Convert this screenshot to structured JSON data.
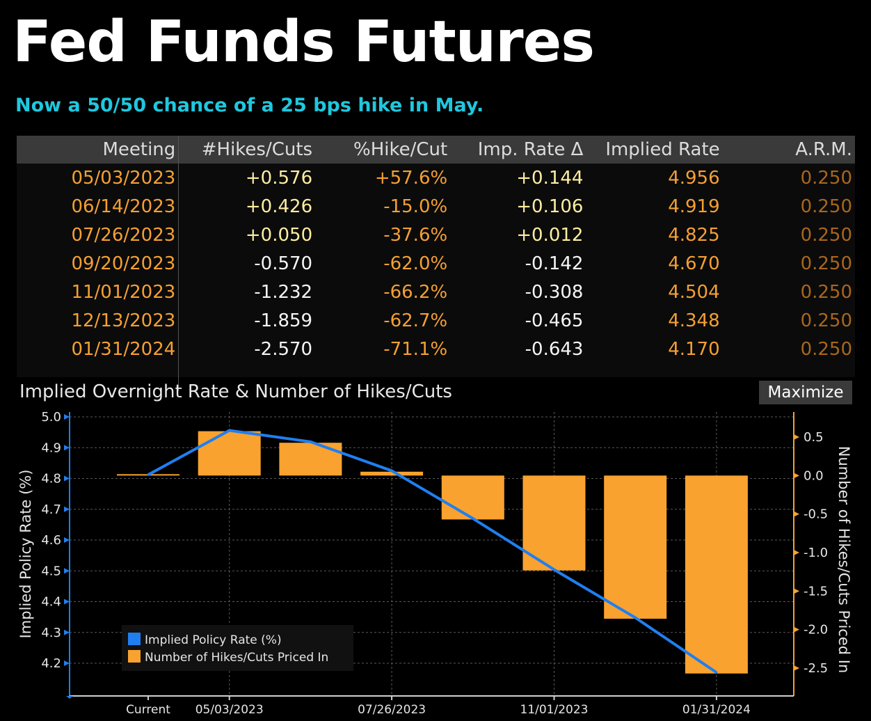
{
  "header": {
    "title": "Fed Funds Futures",
    "subtitle": "Now a 50/50 chance of a 25 bps hike in May."
  },
  "table": {
    "columns": [
      "Meeting",
      "#Hikes/Cuts",
      "%Hike/Cut",
      "Imp. Rate Δ",
      "Implied Rate",
      "A.R.M."
    ],
    "rows": [
      {
        "meeting": "05/03/2023",
        "hikes": "+0.576",
        "pct": "+57.6%",
        "delta": "+0.144",
        "rate": "4.956",
        "arm": "0.250"
      },
      {
        "meeting": "06/14/2023",
        "hikes": "+0.426",
        "pct": "-15.0%",
        "delta": "+0.106",
        "rate": "4.919",
        "arm": "0.250"
      },
      {
        "meeting": "07/26/2023",
        "hikes": "+0.050",
        "pct": "-37.6%",
        "delta": "+0.012",
        "rate": "4.825",
        "arm": "0.250"
      },
      {
        "meeting": "09/20/2023",
        "hikes": "-0.570",
        "pct": "-62.0%",
        "delta": "-0.142",
        "rate": "4.670",
        "arm": "0.250"
      },
      {
        "meeting": "11/01/2023",
        "hikes": "-1.232",
        "pct": "-66.2%",
        "delta": "-0.308",
        "rate": "4.504",
        "arm": "0.250"
      },
      {
        "meeting": "12/13/2023",
        "hikes": "-1.859",
        "pct": "-62.7%",
        "delta": "-0.465",
        "rate": "4.348",
        "arm": "0.250"
      },
      {
        "meeting": "01/31/2024",
        "hikes": "-2.570",
        "pct": "-71.1%",
        "delta": "-0.643",
        "rate": "4.170",
        "arm": "0.250"
      }
    ]
  },
  "panel": {
    "title": "Implied Overnight Rate & Number of Hikes/Cuts",
    "maximize_label": "Maximize"
  },
  "colors": {
    "line": "#1f7ff0",
    "bar": "#f9a22f",
    "axis_left": "#1f7ff0",
    "axis_right": "#f9a22f"
  },
  "chart_data": {
    "type": "bar",
    "categories": [
      "Current",
      "05/03/2023",
      "06/14/2023",
      "07/26/2023",
      "09/20/2023",
      "11/01/2023",
      "12/13/2023",
      "01/31/2024"
    ],
    "x_tick_labels": [
      "Current",
      "05/03/2023",
      "07/26/2023",
      "11/01/2023",
      "01/31/2024"
    ],
    "series": [
      {
        "name": "Implied Policy Rate (%)",
        "type": "line",
        "axis": "left",
        "values": [
          4.812,
          4.956,
          4.919,
          4.825,
          4.67,
          4.504,
          4.348,
          4.17
        ]
      },
      {
        "name": "Number of Hikes/Cuts Priced In",
        "type": "bar",
        "axis": "right",
        "values": [
          0.0,
          0.576,
          0.426,
          0.05,
          -0.57,
          -1.232,
          -1.859,
          -2.57
        ]
      }
    ],
    "left_axis": {
      "label": "Implied Policy Rate (%)",
      "ticks": [
        4.2,
        4.3,
        4.4,
        4.5,
        4.6,
        4.7,
        4.8,
        4.9,
        5.0
      ],
      "range": [
        4.1,
        5.0
      ]
    },
    "right_axis": {
      "label": "Number of Hikes/Cuts Priced In",
      "ticks": [
        0.5,
        0.0,
        -0.5,
        -1.0,
        -1.5,
        -2.0,
        -2.5
      ],
      "range": [
        -2.8,
        0.85
      ]
    },
    "legend_position": "bottom-left",
    "grid": true
  }
}
